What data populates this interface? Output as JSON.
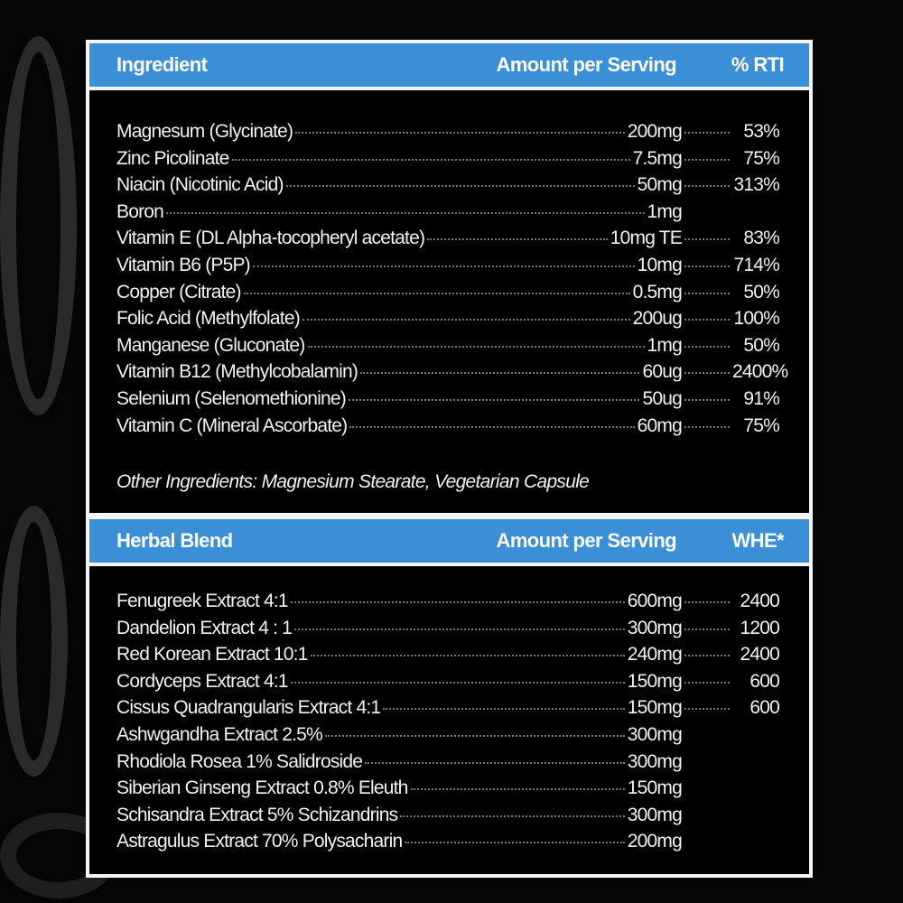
{
  "vitamins": {
    "headers": {
      "ingredient": "Ingredient",
      "amount": "Amount per Serving",
      "pct": "% RTI"
    },
    "rows": [
      {
        "name": "Magnesum (Glycinate)",
        "amount": "200mg",
        "pct": "53%"
      },
      {
        "name": "Zinc Picolinate",
        "amount": "7.5mg",
        "pct": "75%"
      },
      {
        "name": "Niacin (Nicotinic Acid)",
        "amount": "50mg",
        "pct": "313%"
      },
      {
        "name": "Boron",
        "amount": "1mg",
        "pct": ""
      },
      {
        "name": "Vitamin E (DL Alpha-tocopheryl acetate)",
        "amount": "10mg TE",
        "pct": "83%"
      },
      {
        "name": "Vitamin B6 (P5P)",
        "amount": "10mg",
        "pct": "714%"
      },
      {
        "name": "Copper (Citrate)",
        "amount": "0.5mg",
        "pct": "50%"
      },
      {
        "name": "Folic Acid (Methylfolate)",
        "amount": "200ug",
        "pct": "100%"
      },
      {
        "name": "Manganese (Gluconate)",
        "amount": "1mg",
        "pct": "50%"
      },
      {
        "name": "Vitamin B12 (Methylcobalamin)",
        "amount": "60ug",
        "pct": "2400%"
      },
      {
        "name": "Selenium (Selenomethionine)",
        "amount": "50ug",
        "pct": "91%"
      },
      {
        "name": "Vitamin C (Mineral Ascorbate)",
        "amount": "60mg",
        "pct": "75%"
      }
    ],
    "other": "Other Ingredients: Magnesium Stearate, Vegetarian Capsule"
  },
  "herbal": {
    "headers": {
      "ingredient": "Herbal Blend",
      "amount": "Amount per Serving",
      "pct": "WHE*"
    },
    "rows": [
      {
        "name": "Fenugreek Extract 4:1",
        "amount": "600mg",
        "pct": "2400"
      },
      {
        "name": "Dandelion Extract 4 : 1",
        "amount": "300mg",
        "pct": "1200"
      },
      {
        "name": "Red Korean Extract 10:1",
        "amount": "240mg",
        "pct": "2400"
      },
      {
        "name": "Cordyceps Extract 4:1",
        "amount": "150mg",
        "pct": "600"
      },
      {
        "name": "Cissus Quadrangularis Extract 4:1",
        "amount": "150mg",
        "pct": "600"
      },
      {
        "name": "Ashwgandha Extract 2.5%",
        "amount": "300mg",
        "pct": ""
      },
      {
        "name": "Rhodiola Rosea 1% Salidroside",
        "amount": "300mg",
        "pct": ""
      },
      {
        "name": "Siberian Ginseng Extract 0.8% Eleuth",
        "amount": "150mg",
        "pct": ""
      },
      {
        "name": "Schisandra Extract 5% Schizandrins",
        "amount": "300mg",
        "pct": ""
      },
      {
        "name": "Astragulus Extract 70% Polysacharin",
        "amount": "200mg",
        "pct": ""
      }
    ]
  },
  "colors": {
    "header_blue": "#3a8fd6",
    "background": "#050505",
    "border": "#f4f4f4"
  }
}
